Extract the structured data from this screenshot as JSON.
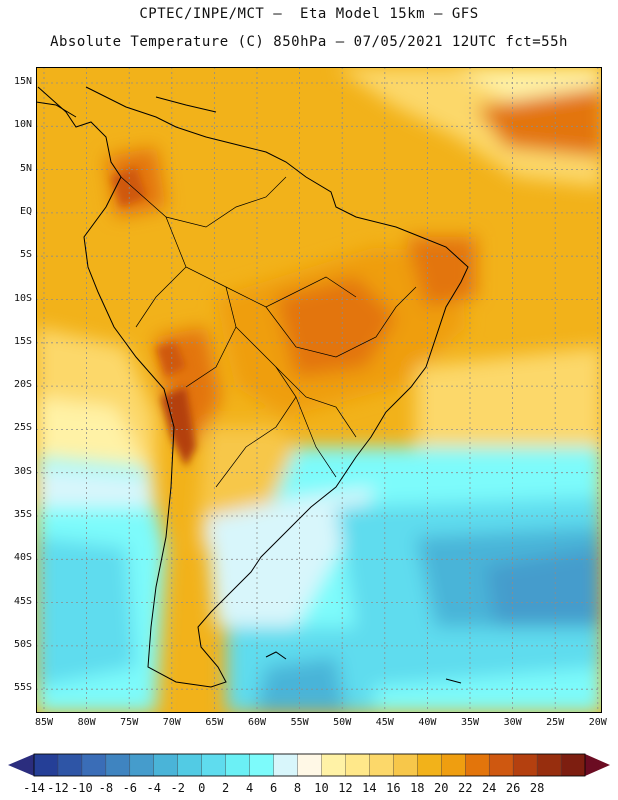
{
  "header": {
    "line1": "CPTEC/INPE/MCT —  Eta Model 15km — GFS",
    "line2": "Absolute Temperature (C) 850hPa — 07/05/2021 12UTC fct=55h"
  },
  "map": {
    "lat_labels": [
      "15N",
      "10N",
      "5N",
      "EQ",
      "5S",
      "10S",
      "15S",
      "20S",
      "25S",
      "30S",
      "35S",
      "40S",
      "45S",
      "50S",
      "55S"
    ],
    "lon_labels": [
      "85W",
      "80W",
      "75W",
      "70W",
      "65W",
      "60W",
      "55W",
      "50W",
      "45W",
      "40W",
      "35W",
      "30W",
      "25W",
      "20W"
    ]
  },
  "colorbar": {
    "labels": [
      "-14",
      "-12",
      "-10",
      "-8",
      "-6",
      "-4",
      "-2",
      "0",
      "2",
      "4",
      "6",
      "8",
      "10",
      "12",
      "14",
      "16",
      "18",
      "20",
      "22",
      "24",
      "26",
      "28"
    ],
    "colors": [
      "#253f97",
      "#2e55a6",
      "#3a6db7",
      "#3f84c0",
      "#459ccc",
      "#4ab4d8",
      "#52cbe4",
      "#5fdcee",
      "#6bf0f5",
      "#7dfbfb",
      "#d8f6fb",
      "#fff8e6",
      "#fff2a6",
      "#ffe88a",
      "#fcd86a",
      "#f7c74a",
      "#f2b21a",
      "#ef9e10",
      "#e3750b",
      "#cf5810",
      "#b4400f",
      "#972e0e",
      "#7d1e10"
    ],
    "end_left": "#2b2d7e",
    "end_right": "#6b0c22"
  }
}
